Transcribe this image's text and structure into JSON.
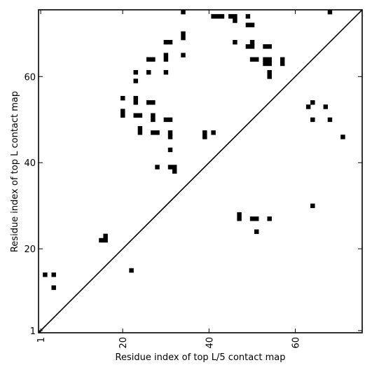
{
  "chart_data": {
    "type": "heatmap",
    "xlabel": "Residue index of top L/5 contact map",
    "ylabel": "Residue index of top L contact map",
    "xlim": [
      0.5,
      75.5
    ],
    "ylim": [
      0.5,
      75.5
    ],
    "xticks": [
      1,
      20,
      40,
      60
    ],
    "yticks": [
      1,
      20,
      40,
      60
    ],
    "xtick_labels": [
      "1",
      "20",
      "40",
      "60"
    ],
    "ytick_labels": [
      "1",
      "20",
      "40",
      "60"
    ],
    "diagonal": true,
    "color": "#000000",
    "points": [
      [
        34,
        75
      ],
      [
        41,
        74
      ],
      [
        42,
        74
      ],
      [
        43,
        74
      ],
      [
        45,
        74
      ],
      [
        46,
        74
      ],
      [
        49,
        74
      ],
      [
        68,
        75
      ],
      [
        46,
        73
      ],
      [
        49,
        72
      ],
      [
        50,
        72
      ],
      [
        34,
        70
      ],
      [
        34,
        69
      ],
      [
        30,
        68
      ],
      [
        31,
        68
      ],
      [
        46,
        68
      ],
      [
        50,
        68
      ],
      [
        49,
        67
      ],
      [
        50,
        67
      ],
      [
        53,
        67
      ],
      [
        54,
        67
      ],
      [
        30,
        65
      ],
      [
        34,
        65
      ],
      [
        30,
        64
      ],
      [
        26,
        64
      ],
      [
        27,
        64
      ],
      [
        50,
        64
      ],
      [
        51,
        64
      ],
      [
        53,
        64
      ],
      [
        54,
        64
      ],
      [
        57,
        64
      ],
      [
        53,
        63
      ],
      [
        54,
        63
      ],
      [
        57,
        63
      ],
      [
        23,
        61
      ],
      [
        26,
        61
      ],
      [
        30,
        61
      ],
      [
        54,
        61
      ],
      [
        54,
        60
      ],
      [
        23,
        59
      ],
      [
        20,
        55
      ],
      [
        23,
        55
      ],
      [
        23,
        54
      ],
      [
        26,
        54
      ],
      [
        27,
        54
      ],
      [
        64,
        54
      ],
      [
        63,
        53
      ],
      [
        67,
        53
      ],
      [
        20,
        52
      ],
      [
        20,
        51
      ],
      [
        23,
        51
      ],
      [
        24,
        51
      ],
      [
        27,
        51
      ],
      [
        27,
        50
      ],
      [
        30,
        50
      ],
      [
        31,
        50
      ],
      [
        64,
        50
      ],
      [
        68,
        50
      ],
      [
        24,
        48
      ],
      [
        24,
        47
      ],
      [
        27,
        47
      ],
      [
        28,
        47
      ],
      [
        31,
        47
      ],
      [
        39,
        47
      ],
      [
        41,
        47
      ],
      [
        31,
        46
      ],
      [
        39,
        46
      ],
      [
        71,
        46
      ],
      [
        31,
        43
      ],
      [
        28,
        39
      ],
      [
        31,
        39
      ],
      [
        32,
        39
      ],
      [
        32,
        38
      ],
      [
        64,
        30
      ],
      [
        47,
        28
      ],
      [
        47,
        27
      ],
      [
        50,
        27
      ],
      [
        51,
        27
      ],
      [
        54,
        27
      ],
      [
        51,
        24
      ],
      [
        16,
        23
      ],
      [
        15,
        22
      ],
      [
        16,
        22
      ],
      [
        22,
        15
      ],
      [
        2,
        14
      ],
      [
        4,
        14
      ],
      [
        4,
        11
      ]
    ]
  }
}
